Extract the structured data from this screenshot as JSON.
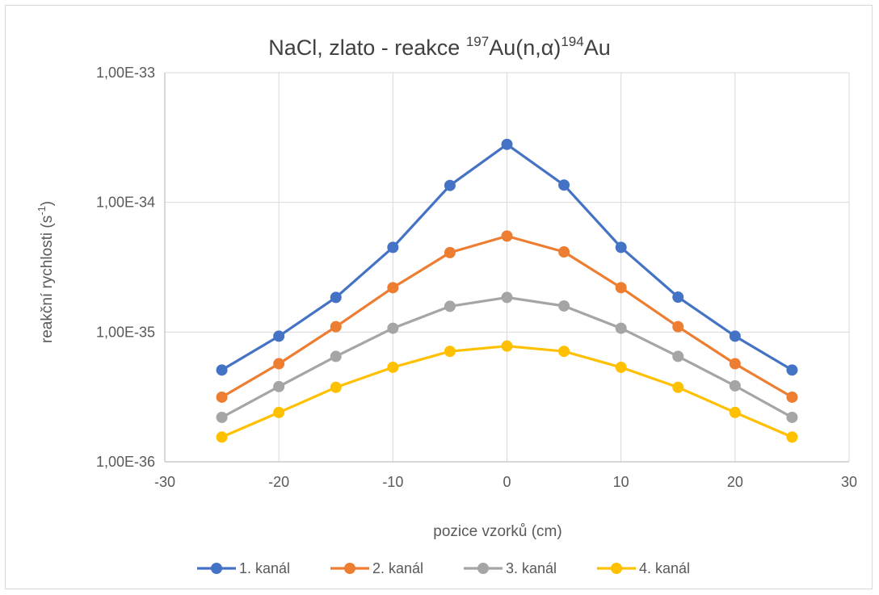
{
  "chart_data": {
    "type": "line",
    "title": {
      "main": "NaCl, zlato - reakce ",
      "sup1": "197",
      "mid": "Au(n,α)",
      "sup2": "194",
      "tail": "Au"
    },
    "xlabel": "pozice vzorků (cm)",
    "ylabel": {
      "main": "reakční rychlosti (s",
      "sup": "-1",
      "tail": ")"
    },
    "xlim": [
      -30,
      30
    ],
    "ylim": [
      1e-36,
      1e-33
    ],
    "yscale": "log",
    "grid": true,
    "legend_position": "bottom",
    "x_ticks": [
      "-30",
      "-20",
      "-10",
      "0",
      "10",
      "20",
      "30"
    ],
    "y_ticks": [
      "1,00E-36",
      "1,00E-35",
      "1,00E-34",
      "1,00E-33"
    ],
    "x": [
      -25,
      -20,
      -15,
      -10,
      -5,
      0,
      5,
      10,
      15,
      20,
      25
    ],
    "series": [
      {
        "name": "1. kanál",
        "color": "#4472C4",
        "values": [
          5.1e-36,
          9.3e-36,
          1.85e-35,
          4.5e-35,
          1.35e-34,
          2.8e-34,
          1.36e-34,
          4.5e-35,
          1.86e-35,
          9.3e-36,
          5.1e-36
        ]
      },
      {
        "name": "2. kanál",
        "color": "#ED7D31",
        "values": [
          3.15e-36,
          5.7e-36,
          1.1e-35,
          2.2e-35,
          4.1e-35,
          5.5e-35,
          4.15e-35,
          2.2e-35,
          1.1e-35,
          5.7e-36,
          3.15e-36
        ]
      },
      {
        "name": "3. kanál",
        "color": "#A5A5A5",
        "values": [
          2.2e-36,
          3.8e-36,
          6.5e-36,
          1.07e-35,
          1.58e-35,
          1.85e-35,
          1.59e-35,
          1.07e-35,
          6.5e-36,
          3.85e-36,
          2.2e-36
        ]
      },
      {
        "name": "4. kanál",
        "color": "#FFC000",
        "values": [
          1.55e-36,
          2.4e-36,
          3.75e-36,
          5.35e-36,
          7.1e-36,
          7.8e-36,
          7.1e-36,
          5.35e-36,
          3.75e-36,
          2.4e-36,
          1.55e-36
        ]
      }
    ]
  }
}
